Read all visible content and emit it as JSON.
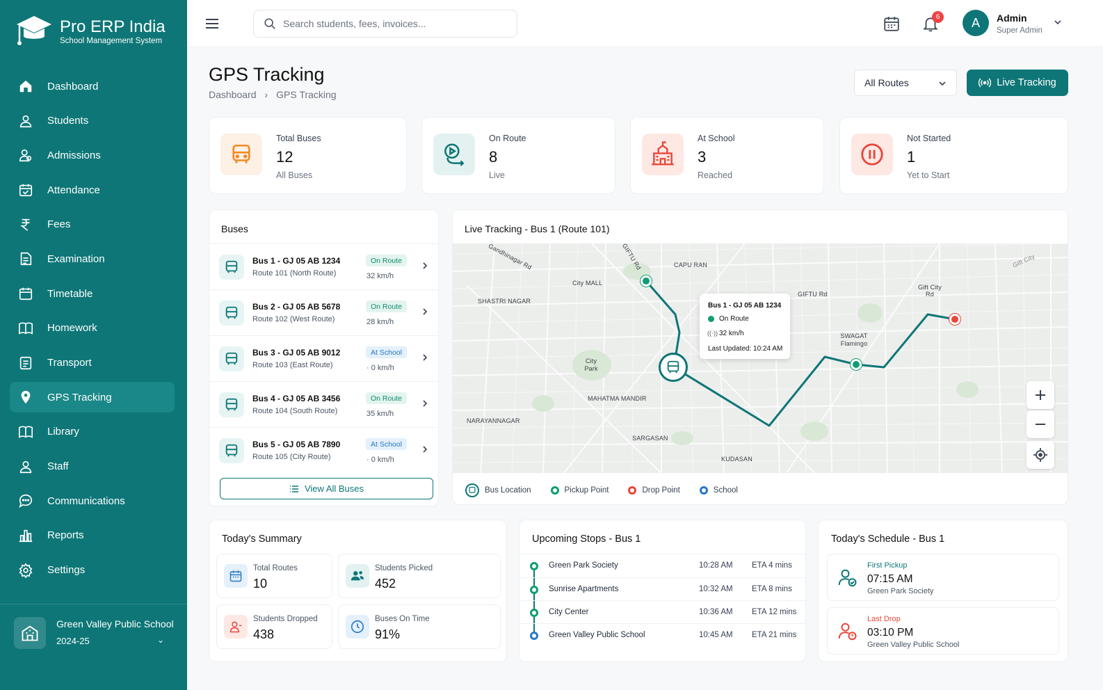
{
  "brand": {
    "name": "Pro ERP India",
    "tagline": "School Management System"
  },
  "sidebar": {
    "items": [
      {
        "label": "Dashboard",
        "icon": "home-icon"
      },
      {
        "label": "Students",
        "icon": "user-icon"
      },
      {
        "label": "Admissions",
        "icon": "user-plus-icon"
      },
      {
        "label": "Attendance",
        "icon": "calendar-check-icon"
      },
      {
        "label": "Fees",
        "icon": "rupee-icon"
      },
      {
        "label": "Examination",
        "icon": "document-icon"
      },
      {
        "label": "Timetable",
        "icon": "calendar-icon"
      },
      {
        "label": "Homework",
        "icon": "book-icon"
      },
      {
        "label": "Transport",
        "icon": "clipboard-icon"
      },
      {
        "label": "GPS Tracking",
        "icon": "location-pin-icon",
        "active": true
      },
      {
        "label": "Library",
        "icon": "book-open-icon"
      },
      {
        "label": "Staff",
        "icon": "user-icon"
      },
      {
        "label": "Communications",
        "icon": "chat-icon"
      },
      {
        "label": "Reports",
        "icon": "bar-chart-icon"
      },
      {
        "label": "Settings",
        "icon": "gear-icon"
      }
    ],
    "school": {
      "name": "Green Valley Public School",
      "year": "2024-25"
    }
  },
  "topbar": {
    "search_placeholder": "Search students, fees, invoices...",
    "notification_count": "6",
    "user": {
      "initial": "A",
      "name": "Admin",
      "role": "Super Admin"
    }
  },
  "page": {
    "title": "GPS Tracking",
    "breadcrumb": [
      "Dashboard",
      "GPS Tracking"
    ],
    "route_filter": "All Routes",
    "live_button": "Live Tracking"
  },
  "stats": [
    {
      "label": "Total Buses",
      "value": "12",
      "sub": "All Buses",
      "color": "#f08a24"
    },
    {
      "label": "On Route",
      "value": "8",
      "sub": "Live",
      "color": "#0e7677"
    },
    {
      "label": "At School",
      "value": "3",
      "sub": "Reached",
      "color": "#e8473a"
    },
    {
      "label": "Not Started",
      "value": "1",
      "sub": "Yet to Start",
      "color": "#e8473a"
    }
  ],
  "buses": {
    "title": "Buses",
    "items": [
      {
        "name": "Bus 1 - GJ 05 AB 1234",
        "route": "Route 101 (North Route)",
        "status": "On Route",
        "speed": "32 km/h"
      },
      {
        "name": "Bus 2 - GJ 05 AB 5678",
        "route": "Route 102 (West Route)",
        "status": "On Route",
        "speed": "28 km/h"
      },
      {
        "name": "Bus 3 - GJ 05 AB 9012",
        "route": "Route 103 (East Route)",
        "status": "At School",
        "speed": "· 0 km/h"
      },
      {
        "name": "Bus 4 - GJ 05 AB 3456",
        "route": "Route 104 (South Route)",
        "status": "On Route",
        "speed": "35 km/h"
      },
      {
        "name": "Bus 5 - GJ 05 AB 7890",
        "route": "Route 105 (City Route)",
        "status": "At School",
        "speed": "· 0 km/h"
      }
    ],
    "view_all": "View All Buses"
  },
  "live": {
    "title": "Live Tracking - Bus 1 (Route 101)",
    "map_labels": [
      "Gandhinagar Rd",
      "GIFTU Rd",
      "CAPU RAN",
      "City MALL",
      "SHASTRI NAGAR",
      "GIFTU Rd",
      "Gift City Rd",
      "SWAGAT Flamingo",
      "City Park",
      "MAHATMA MANDIR",
      "NARAYANNAGAR",
      "SARGASAN",
      "KUDASAN",
      "Gift City"
    ],
    "tooltip": {
      "bus": "Bus 1 - GJ 05 AB 1234",
      "status": "On Route",
      "speed": "32 km/h",
      "updated": "Last Updated: 10:24 AM"
    },
    "legend": [
      "Bus Location",
      "Pickup Point",
      "Drop Point",
      "School"
    ]
  },
  "summary": {
    "title": "Today's Summary",
    "items": [
      {
        "label": "Total Routes",
        "value": "10"
      },
      {
        "label": "Students Picked",
        "value": "452"
      },
      {
        "label": "Students Dropped",
        "value": "438"
      },
      {
        "label": "Buses On Time",
        "value": "91%"
      }
    ]
  },
  "stops": {
    "title": "Upcoming Stops - Bus 1",
    "items": [
      {
        "name": "Green Park Society",
        "time": "10:28 AM",
        "eta": "ETA 4 mins"
      },
      {
        "name": "Sunrise Apartments",
        "time": "10:32 AM",
        "eta": "ETA 8 mins"
      },
      {
        "name": "City Center",
        "time": "10:36 AM",
        "eta": "ETA 12 mins"
      },
      {
        "name": "Green Valley Public School",
        "time": "10:45 AM",
        "eta": "ETA 21 mins"
      }
    ]
  },
  "schedule": {
    "title": "Today's Schedule - Bus 1",
    "items": [
      {
        "kind": "First Pickup",
        "time": "07:15 AM",
        "place": "Green Park Society"
      },
      {
        "kind": "Last Drop",
        "time": "03:10 PM",
        "place": "Green Valley Public School"
      }
    ]
  }
}
